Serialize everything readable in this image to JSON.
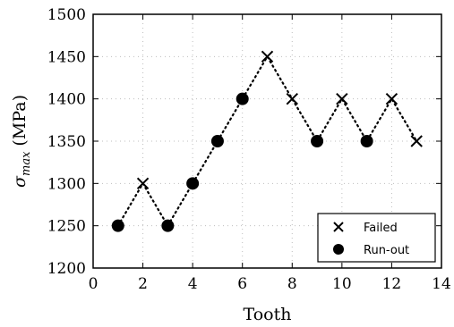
{
  "chart_data": {
    "type": "scatter",
    "title": "",
    "xlabel": "Tooth",
    "ylabel": "σmax (MPa)",
    "ylabel_parts": {
      "symbol": "σ",
      "subscript": "max",
      "unit": "(MPa)"
    },
    "xlim": [
      0,
      14
    ],
    "ylim": [
      1200,
      1500
    ],
    "x_ticks": [
      0,
      2,
      4,
      6,
      8,
      10,
      12,
      14
    ],
    "y_ticks": [
      1200,
      1250,
      1300,
      1350,
      1400,
      1450,
      1500
    ],
    "grid": true,
    "legend_position": "lower-right",
    "connecting_line": "dotted",
    "series": [
      {
        "name": "Failed",
        "marker": "x",
        "points": [
          {
            "x": 2,
            "y": 1300
          },
          {
            "x": 7,
            "y": 1450
          },
          {
            "x": 8,
            "y": 1400
          },
          {
            "x": 10,
            "y": 1400
          },
          {
            "x": 12,
            "y": 1400
          },
          {
            "x": 13,
            "y": 1350
          }
        ]
      },
      {
        "name": "Run-out",
        "marker": "circle",
        "points": [
          {
            "x": 1,
            "y": 1250
          },
          {
            "x": 3,
            "y": 1250
          },
          {
            "x": 4,
            "y": 1300
          },
          {
            "x": 5,
            "y": 1350
          },
          {
            "x": 6,
            "y": 1400
          },
          {
            "x": 9,
            "y": 1350
          },
          {
            "x": 11,
            "y": 1350
          }
        ]
      }
    ],
    "sequence": [
      {
        "x": 1,
        "y": 1250
      },
      {
        "x": 2,
        "y": 1300
      },
      {
        "x": 3,
        "y": 1250
      },
      {
        "x": 4,
        "y": 1300
      },
      {
        "x": 5,
        "y": 1350
      },
      {
        "x": 6,
        "y": 1400
      },
      {
        "x": 7,
        "y": 1450
      },
      {
        "x": 8,
        "y": 1400
      },
      {
        "x": 9,
        "y": 1350
      },
      {
        "x": 10,
        "y": 1400
      },
      {
        "x": 11,
        "y": 1350
      },
      {
        "x": 12,
        "y": 1400
      },
      {
        "x": 13,
        "y": 1350
      }
    ],
    "colors": {
      "marker": "#000000",
      "grid": "#bfbfbf",
      "axes": "#000000"
    }
  }
}
